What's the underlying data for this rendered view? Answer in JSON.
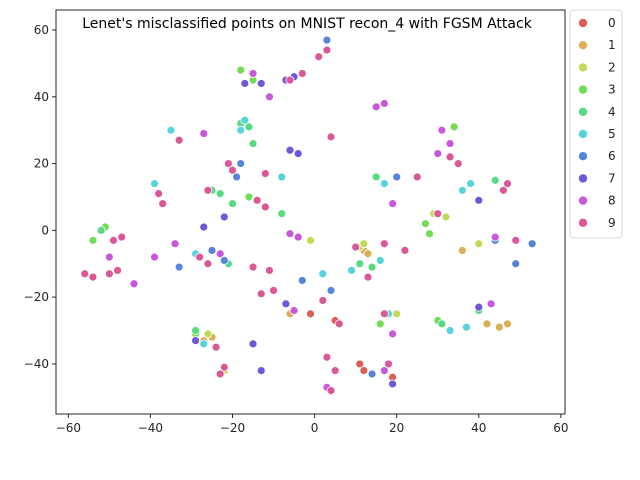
{
  "chart_data": {
    "type": "scatter",
    "title": "Lenet's misclassified points on MNIST recon_4 with FGSM Attack",
    "xlabel": "",
    "ylabel": "",
    "xlim": [
      -63,
      61
    ],
    "ylim": [
      -55,
      66
    ],
    "xticks": [
      -60,
      -40,
      -20,
      0,
      20,
      40,
      60
    ],
    "yticks": [
      -40,
      -20,
      0,
      20,
      40,
      60
    ],
    "grid": false,
    "legend_placement": "outside-right-top",
    "series": [
      {
        "name": "0",
        "color": "#db5f57",
        "points": [
          [
            2,
            -21
          ],
          [
            -1,
            -25
          ],
          [
            5,
            -27
          ],
          [
            11,
            -40
          ],
          [
            12,
            -42
          ],
          [
            19,
            -44
          ],
          [
            22,
            -6
          ]
        ]
      },
      {
        "name": "1",
        "color": "#dbae57",
        "points": [
          [
            -25,
            -32
          ],
          [
            -27,
            -33
          ],
          [
            -6,
            -25
          ],
          [
            12,
            -6
          ],
          [
            13,
            -7
          ],
          [
            42,
            -28
          ],
          [
            45,
            -29
          ],
          [
            47,
            -28
          ],
          [
            36,
            -6
          ]
        ]
      },
      {
        "name": "2",
        "color": "#c1db57",
        "points": [
          [
            -26,
            -31
          ],
          [
            -22,
            -42
          ],
          [
            -1,
            -3
          ],
          [
            11,
            -5
          ],
          [
            12,
            -4
          ],
          [
            29,
            5
          ],
          [
            32,
            4
          ],
          [
            40,
            -4
          ],
          [
            20,
            -25
          ]
        ]
      },
      {
        "name": "3",
        "color": "#72db57",
        "points": [
          [
            -51,
            1
          ],
          [
            -54,
            -3
          ],
          [
            -18,
            48
          ],
          [
            -15,
            45
          ],
          [
            -16,
            10
          ],
          [
            -29,
            -31
          ],
          [
            30,
            -27
          ],
          [
            34,
            31
          ],
          [
            27,
            2
          ],
          [
            16,
            -28
          ],
          [
            28,
            -1
          ]
        ]
      },
      {
        "name": "4",
        "color": "#57db80",
        "points": [
          [
            -52,
            0
          ],
          [
            -25,
            12
          ],
          [
            -23,
            11
          ],
          [
            -16,
            31
          ],
          [
            -18,
            32
          ],
          [
            -15,
            26
          ],
          [
            -20,
            8
          ],
          [
            -8,
            5
          ],
          [
            -21,
            -10
          ],
          [
            11,
            -10
          ],
          [
            14,
            -11
          ],
          [
            15,
            16
          ],
          [
            -29,
            -30
          ],
          [
            31,
            -28
          ],
          [
            40,
            -24
          ],
          [
            44,
            15
          ]
        ]
      },
      {
        "name": "5",
        "color": "#57d3db",
        "points": [
          [
            -17,
            33
          ],
          [
            -18,
            30
          ],
          [
            -35,
            30
          ],
          [
            -39,
            14
          ],
          [
            -8,
            16
          ],
          [
            -29,
            -7
          ],
          [
            2,
            -13
          ],
          [
            9,
            -12
          ],
          [
            16,
            -9
          ],
          [
            17,
            14
          ],
          [
            33,
            -30
          ],
          [
            37,
            -29
          ],
          [
            36,
            12
          ],
          [
            38,
            14
          ],
          [
            -27,
            -34
          ],
          [
            18,
            -25
          ]
        ]
      },
      {
        "name": "6",
        "color": "#5784db",
        "points": [
          [
            -18,
            20
          ],
          [
            -19,
            16
          ],
          [
            3,
            57
          ],
          [
            -22,
            -9
          ],
          [
            -33,
            -11
          ],
          [
            -3,
            -15
          ],
          [
            4,
            -18
          ],
          [
            -25,
            -6
          ],
          [
            14,
            -43
          ],
          [
            44,
            -3
          ],
          [
            49,
            -10
          ],
          [
            53,
            -4
          ],
          [
            20,
            16
          ]
        ]
      },
      {
        "name": "7",
        "color": "#6f57db",
        "points": [
          [
            -17,
            44
          ],
          [
            -13,
            44
          ],
          [
            -7,
            45
          ],
          [
            -5,
            46
          ],
          [
            -6,
            24
          ],
          [
            -4,
            23
          ],
          [
            -27,
            1
          ],
          [
            -22,
            4
          ],
          [
            -7,
            -22
          ],
          [
            -15,
            -34
          ],
          [
            -13,
            -42
          ],
          [
            19,
            -46
          ],
          [
            40,
            9
          ],
          [
            40,
            -23
          ],
          [
            -29,
            -33
          ]
        ]
      },
      {
        "name": "8",
        "color": "#c957db",
        "points": [
          [
            -11,
            40
          ],
          [
            -15,
            47
          ],
          [
            15,
            37
          ],
          [
            17,
            38
          ],
          [
            -6,
            -1
          ],
          [
            -4,
            -2
          ],
          [
            -34,
            -4
          ],
          [
            -23,
            -7
          ],
          [
            -44,
            -16
          ],
          [
            -50,
            -8
          ],
          [
            19,
            -31
          ],
          [
            17,
            -42
          ],
          [
            33,
            26
          ],
          [
            31,
            30
          ],
          [
            19,
            8
          ],
          [
            -27,
            29
          ],
          [
            3,
            -47
          ],
          [
            43,
            -22
          ],
          [
            44,
            -2
          ],
          [
            30,
            23
          ],
          [
            -5,
            -24
          ],
          [
            -39,
            -8
          ]
        ]
      },
      {
        "name": "9",
        "color": "#db5798",
        "points": [
          [
            -56,
            -13
          ],
          [
            -54,
            -14
          ],
          [
            -50,
            -13
          ],
          [
            -48,
            -12
          ],
          [
            -38,
            11
          ],
          [
            -37,
            8
          ],
          [
            -21,
            20
          ],
          [
            -20,
            18
          ],
          [
            -12,
            17
          ],
          [
            -14,
            9
          ],
          [
            -12,
            7
          ],
          [
            -11,
            -12
          ],
          [
            -10,
            -18
          ],
          [
            -13,
            -19
          ],
          [
            -24,
            -35
          ],
          [
            -22,
            -41
          ],
          [
            -23,
            -43
          ],
          [
            1,
            52
          ],
          [
            3,
            54
          ],
          [
            -6,
            45
          ],
          [
            -3,
            47
          ],
          [
            3,
            -38
          ],
          [
            5,
            -42
          ],
          [
            4,
            -48
          ],
          [
            6,
            -28
          ],
          [
            2,
            -21
          ],
          [
            10,
            -5
          ],
          [
            13,
            -14
          ],
          [
            17,
            -4
          ],
          [
            22,
            -6
          ],
          [
            18,
            -40
          ],
          [
            17,
            -25
          ],
          [
            35,
            20
          ],
          [
            33,
            22
          ],
          [
            46,
            12
          ],
          [
            47,
            14
          ],
          [
            49,
            -3
          ],
          [
            25,
            16
          ],
          [
            30,
            5
          ],
          [
            -49,
            -3
          ],
          [
            -47,
            -2
          ],
          [
            -28,
            -8
          ],
          [
            -26,
            -10
          ],
          [
            -33,
            27
          ],
          [
            -26,
            12
          ],
          [
            4,
            28
          ],
          [
            -15,
            -11
          ]
        ]
      }
    ]
  }
}
